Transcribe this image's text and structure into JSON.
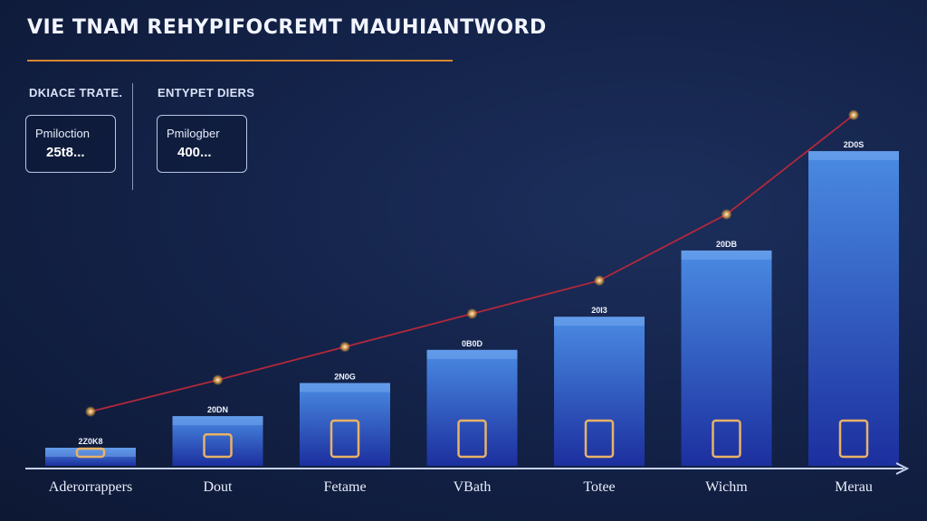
{
  "header": {
    "title": "VIE TNAM REHYPIFOCREMT MAUHIANTWORD"
  },
  "kpis": [
    {
      "heading": "DKIACE TRATE.",
      "label": "Pmiloction",
      "value": "25t8..."
    },
    {
      "heading": "ENTYPET DIERS",
      "label": "Pmilogber",
      "value": "400..."
    }
  ],
  "colors": {
    "bar_top": "#3f7fdc",
    "bar_bottom": "#1a2f9c",
    "axis": "#c6d2ee",
    "trend_line": "#b1283b",
    "title_rule": "#d8872f",
    "icon": "#e9b267"
  },
  "chart_data": {
    "type": "bar",
    "categories": [
      "Aderorrappers",
      "Dout",
      "Fetame",
      "VBath",
      "Totee",
      "Wichm",
      "Merau"
    ],
    "value_labels": [
      "2Z0K8",
      "20DN",
      "2N0G",
      "0B0D",
      "20I3",
      "20DB",
      "2D0S"
    ],
    "values": [
      1,
      2,
      3,
      4,
      5,
      7,
      10
    ],
    "ylim": [
      0,
      10.5
    ],
    "trend_line": true,
    "grid": false
  }
}
